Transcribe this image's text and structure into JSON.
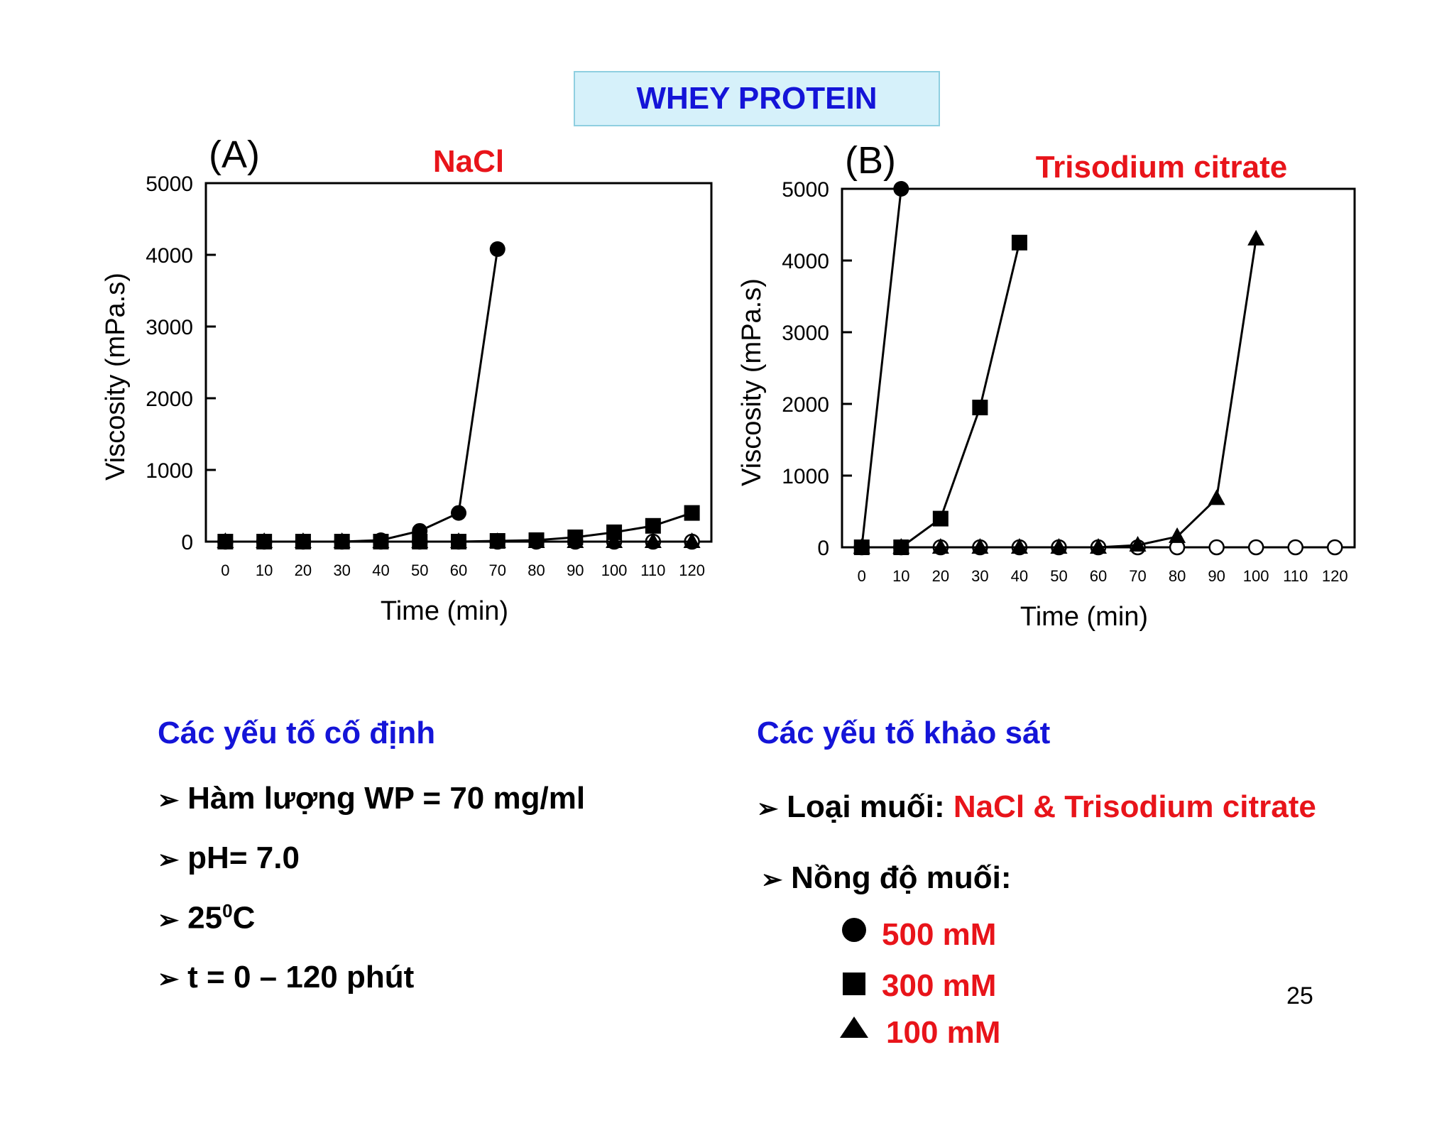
{
  "page_title": "WHEY PROTEIN",
  "chart_data": [
    {
      "type": "line",
      "panel": "(A)",
      "title": "NaCl",
      "xlabel": "Time (min)",
      "ylabel": "Viscosity (mPa.s)",
      "xlim": [
        -5,
        125
      ],
      "ylim": [
        0,
        5000
      ],
      "x": [
        0,
        10,
        20,
        30,
        40,
        50,
        60,
        70,
        80,
        90,
        100,
        110,
        120
      ],
      "xticks": [
        "0",
        "10",
        "20",
        "30",
        "40",
        "50",
        "60",
        "70",
        "80",
        "90",
        "100",
        "110",
        "120"
      ],
      "yticks": [
        "0",
        "1000",
        "2000",
        "3000",
        "4000",
        "5000"
      ],
      "series": [
        {
          "marker": "circle-filled",
          "x": [
            0,
            10,
            20,
            30,
            40,
            50,
            60,
            70
          ],
          "values": [
            0,
            0,
            0,
            0,
            20,
            150,
            400,
            4080
          ]
        },
        {
          "marker": "square-filled",
          "x": [
            0,
            10,
            20,
            30,
            40,
            50,
            60,
            70,
            80,
            90,
            100,
            110,
            120
          ],
          "values": [
            0,
            0,
            0,
            0,
            0,
            0,
            0,
            10,
            20,
            60,
            130,
            220,
            400
          ]
        },
        {
          "marker": "triangle-filled",
          "x": [
            0,
            10,
            20,
            30,
            40,
            50,
            60,
            70,
            80,
            90,
            100,
            110,
            120
          ],
          "values": [
            0,
            0,
            0,
            0,
            0,
            0,
            0,
            0,
            0,
            0,
            0,
            0,
            0
          ]
        },
        {
          "marker": "circle-open",
          "x": [
            0,
            10,
            20,
            30,
            40,
            50,
            60,
            70,
            80,
            90,
            100,
            110,
            120
          ],
          "values": [
            0,
            0,
            0,
            0,
            0,
            0,
            0,
            0,
            0,
            0,
            0,
            0,
            0
          ]
        }
      ]
    },
    {
      "type": "line",
      "panel": "(B)",
      "title": "Trisodium citrate",
      "xlabel": "Time (min)",
      "ylabel": "Viscosity (mPa.s)",
      "xlim": [
        -5,
        125
      ],
      "ylim": [
        0,
        5000
      ],
      "x": [
        0,
        10,
        20,
        30,
        40,
        50,
        60,
        70,
        80,
        90,
        100,
        110,
        120
      ],
      "xticks": [
        "0",
        "10",
        "20",
        "30",
        "40",
        "50",
        "60",
        "70",
        "80",
        "90",
        "100",
        "110",
        "120"
      ],
      "yticks": [
        "0",
        "1000",
        "2000",
        "3000",
        "4000",
        "5000"
      ],
      "series": [
        {
          "marker": "circle-filled",
          "x": [
            0,
            10
          ],
          "values": [
            0,
            5000
          ]
        },
        {
          "marker": "square-filled",
          "x": [
            0,
            10,
            20,
            30,
            40
          ],
          "values": [
            0,
            0,
            400,
            1950,
            4250
          ]
        },
        {
          "marker": "triangle-filled",
          "x": [
            0,
            10,
            20,
            30,
            40,
            50,
            60,
            70,
            80,
            90,
            100
          ],
          "values": [
            0,
            0,
            0,
            0,
            0,
            0,
            0,
            30,
            150,
            680,
            4300
          ]
        },
        {
          "marker": "circle-open",
          "x": [
            0,
            10,
            20,
            30,
            40,
            50,
            60,
            70,
            80,
            90,
            100,
            110,
            120
          ],
          "values": [
            0,
            0,
            0,
            0,
            0,
            0,
            0,
            0,
            0,
            0,
            0,
            0,
            0
          ]
        }
      ]
    }
  ],
  "fixed_factors": {
    "heading": "Các yếu tố cố định",
    "items": [
      "Hàm lượng WP = 70 mg/ml",
      "pH= 7.0",
      "t = 0 – 120 phút"
    ],
    "temp_value": "25",
    "temp_sup": "0",
    "temp_unit": "C"
  },
  "survey_factors": {
    "heading": "Các yếu tố khảo sát",
    "salt_type_label": "Loại muối: ",
    "salt_type_value": "NaCl & Trisodium citrate",
    "salt_conc_label": "Nồng độ muối:",
    "legend": [
      "500 mM",
      "300 mM",
      "100 mM"
    ]
  },
  "page_number": "25"
}
